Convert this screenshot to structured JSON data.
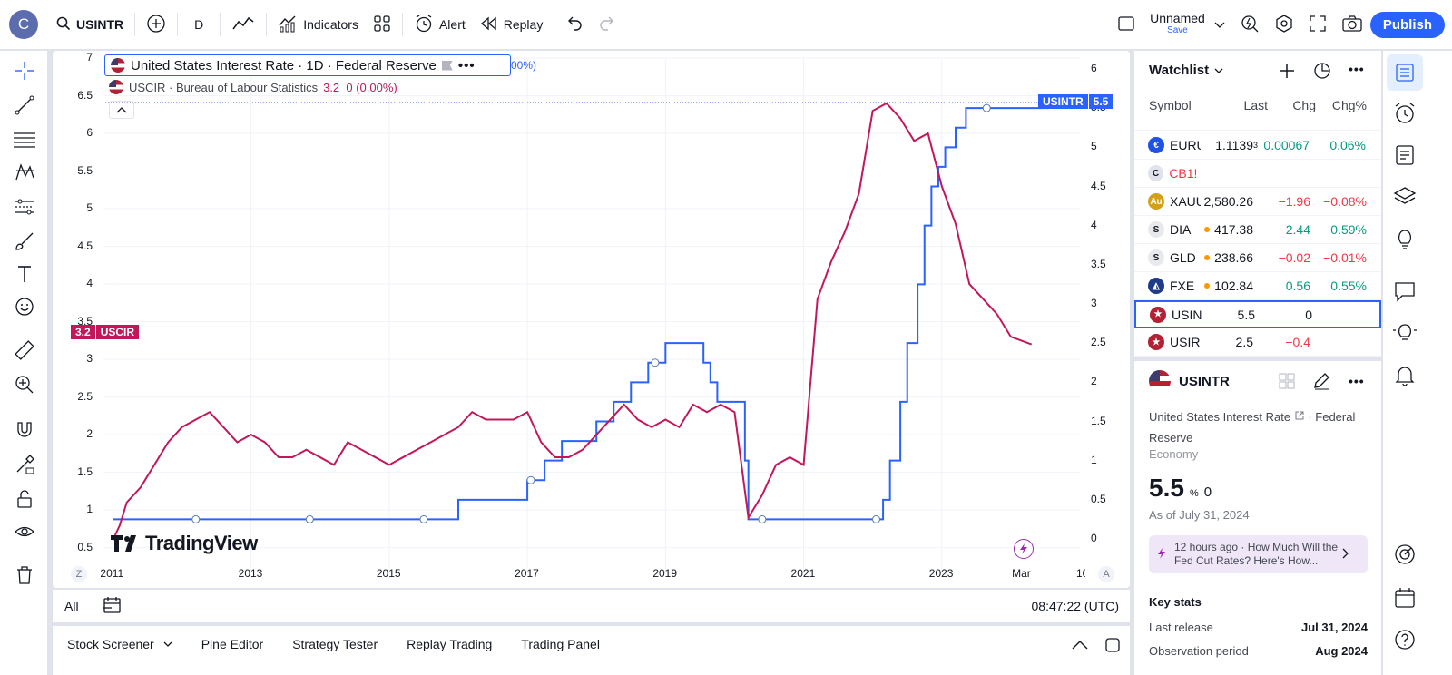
{
  "topbar": {
    "avatar_letter": "C",
    "symbol": "USINTR",
    "interval": "D",
    "indicators": "Indicators",
    "alert": "Alert",
    "replay": "Replay",
    "layout_name": "Unnamed",
    "layout_save": "Save",
    "publish": "Publish"
  },
  "chart": {
    "legend_main": "United States Interest Rate · 1D · Federal Reserve",
    "legend_main_suffix": "00%)",
    "legend_compare": "USCIR · Bureau of Labour Statistics",
    "legend_compare_value": "3.2  0 (0.00%)",
    "left_scale_labels": [
      "7",
      "6.5",
      "6",
      "5.5",
      "5",
      "4.5",
      "4",
      "3.5",
      "3",
      "2.5",
      "2",
      "1.5",
      "1",
      "0.5"
    ],
    "right_scale_labels": [
      "6",
      "5.5",
      "5",
      "4.5",
      "4",
      "3.5",
      "3",
      "2.5",
      "2",
      "1.5",
      "1",
      "0.5",
      "0"
    ],
    "time_labels": [
      "2011",
      "2013",
      "2015",
      "2017",
      "2019",
      "2021",
      "2023",
      "Mar",
      "10"
    ],
    "uscir_badge_value": "3.2",
    "uscir_badge_label": "USCIR",
    "usintr_badge_label": "USINTR",
    "usintr_badge_value": "5.5",
    "watermark": "TradingView",
    "scale_z": "Z",
    "scale_a": "A",
    "colors": {
      "usintr": "#2962ff",
      "uscir": "#c2185b"
    }
  },
  "chart_data": {
    "type": "line",
    "series": [
      {
        "name": "USINTR",
        "scale": "right",
        "points": [
          [
            2011.0,
            0.25
          ],
          [
            2015.9,
            0.25
          ],
          [
            2016.0,
            0.5
          ],
          [
            2016.95,
            0.5
          ],
          [
            2017.0,
            0.75
          ],
          [
            2017.2,
            0.75
          ],
          [
            2017.25,
            1.0
          ],
          [
            2017.45,
            1.0
          ],
          [
            2017.5,
            1.25
          ],
          [
            2017.9,
            1.25
          ],
          [
            2018.0,
            1.5
          ],
          [
            2018.2,
            1.5
          ],
          [
            2018.25,
            1.75
          ],
          [
            2018.45,
            1.75
          ],
          [
            2018.5,
            2.0
          ],
          [
            2018.7,
            2.0
          ],
          [
            2018.75,
            2.25
          ],
          [
            2018.95,
            2.25
          ],
          [
            2019.0,
            2.5
          ],
          [
            2019.45,
            2.5
          ],
          [
            2019.55,
            2.25
          ],
          [
            2019.65,
            2.0
          ],
          [
            2019.75,
            1.75
          ],
          [
            2020.05,
            1.75
          ],
          [
            2020.15,
            1.0
          ],
          [
            2020.2,
            0.25
          ],
          [
            2021.95,
            0.25
          ],
          [
            2022.15,
            0.5
          ],
          [
            2022.25,
            1.0
          ],
          [
            2022.4,
            1.75
          ],
          [
            2022.5,
            2.5
          ],
          [
            2022.65,
            3.25
          ],
          [
            2022.75,
            4.0
          ],
          [
            2022.85,
            4.5
          ],
          [
            2022.95,
            4.75
          ],
          [
            2023.05,
            5.0
          ],
          [
            2023.2,
            5.25
          ],
          [
            2023.35,
            5.5
          ],
          [
            2024.55,
            5.5
          ]
        ]
      },
      {
        "name": "USCIR",
        "scale": "left",
        "points": [
          [
            2011.0,
            0.6
          ],
          [
            2011.1,
            0.8
          ],
          [
            2011.2,
            1.1
          ],
          [
            2011.4,
            1.3
          ],
          [
            2011.6,
            1.6
          ],
          [
            2011.8,
            1.9
          ],
          [
            2012.0,
            2.1
          ],
          [
            2012.2,
            2.2
          ],
          [
            2012.4,
            2.3
          ],
          [
            2012.6,
            2.1
          ],
          [
            2012.8,
            1.9
          ],
          [
            2013.0,
            2.0
          ],
          [
            2013.2,
            1.9
          ],
          [
            2013.4,
            1.7
          ],
          [
            2013.6,
            1.7
          ],
          [
            2013.8,
            1.8
          ],
          [
            2014.0,
            1.7
          ],
          [
            2014.2,
            1.6
          ],
          [
            2014.4,
            1.9
          ],
          [
            2014.6,
            1.8
          ],
          [
            2014.8,
            1.7
          ],
          [
            2015.0,
            1.6
          ],
          [
            2015.2,
            1.7
          ],
          [
            2015.4,
            1.8
          ],
          [
            2015.6,
            1.9
          ],
          [
            2015.8,
            2.0
          ],
          [
            2016.0,
            2.1
          ],
          [
            2016.2,
            2.3
          ],
          [
            2016.4,
            2.2
          ],
          [
            2016.6,
            2.2
          ],
          [
            2016.8,
            2.2
          ],
          [
            2017.0,
            2.3
          ],
          [
            2017.2,
            1.9
          ],
          [
            2017.4,
            1.7
          ],
          [
            2017.6,
            1.7
          ],
          [
            2017.8,
            1.8
          ],
          [
            2018.0,
            2.0
          ],
          [
            2018.2,
            2.2
          ],
          [
            2018.4,
            2.4
          ],
          [
            2018.6,
            2.2
          ],
          [
            2018.8,
            2.1
          ],
          [
            2019.0,
            2.2
          ],
          [
            2019.2,
            2.1
          ],
          [
            2019.4,
            2.4
          ],
          [
            2019.6,
            2.3
          ],
          [
            2019.8,
            2.4
          ],
          [
            2020.0,
            2.3
          ],
          [
            2020.2,
            0.9
          ],
          [
            2020.4,
            1.2
          ],
          [
            2020.6,
            1.6
          ],
          [
            2020.8,
            1.7
          ],
          [
            2021.0,
            1.6
          ],
          [
            2021.2,
            3.8
          ],
          [
            2021.4,
            4.3
          ],
          [
            2021.6,
            4.7
          ],
          [
            2021.8,
            5.2
          ],
          [
            2022.0,
            6.3
          ],
          [
            2022.2,
            6.4
          ],
          [
            2022.4,
            6.2
          ],
          [
            2022.6,
            5.9
          ],
          [
            2022.8,
            6.0
          ],
          [
            2023.0,
            5.3
          ],
          [
            2023.2,
            4.8
          ],
          [
            2023.4,
            4.0
          ],
          [
            2023.6,
            3.8
          ],
          [
            2023.8,
            3.6
          ],
          [
            2024.0,
            3.3
          ],
          [
            2024.3,
            3.2
          ]
        ]
      }
    ],
    "left_ylim": [
      0.4,
      7.0
    ],
    "right_ylim": [
      0,
      6.0
    ],
    "xlim": [
      2010.85,
      2025.0
    ]
  },
  "timeline": {
    "range_all": "All",
    "clock": "08:47:22 (UTC)"
  },
  "bottom_tabs": [
    "Stock Screener",
    "Pine Editor",
    "Strategy Tester",
    "Replay Trading",
    "Trading Panel"
  ],
  "watchlist": {
    "title": "Watchlist",
    "columns": {
      "symbol": "Symbol",
      "last": "Last",
      "chg": "Chg",
      "chgp": "Chg%"
    },
    "rows": [
      {
        "symbol": "EURU",
        "last": "1.1139",
        "last_sup": "3",
        "chg": "0.00067",
        "chgp": "0.06%",
        "dir": "pos",
        "logo_color": "#1e53e5",
        "logo": "€"
      },
      {
        "symbol": "CB1!",
        "last": "",
        "chg": "",
        "chgp": "",
        "dir": "neg",
        "logo_color": "#e0e3eb",
        "logo": "C"
      },
      {
        "symbol": "XAUU",
        "last": "2,580.26",
        "chg": "−1.96",
        "chgp": "−0.08%",
        "dir": "neg",
        "logo_color": "#d4a017",
        "logo": "Au"
      },
      {
        "symbol": "DIA",
        "last": "417.38",
        "chg": "2.44",
        "chgp": "0.59%",
        "dir": "pos",
        "logo_color": "#e8e9ed",
        "logo": "S",
        "dot": true
      },
      {
        "symbol": "GLD",
        "last": "238.66",
        "chg": "−0.02",
        "chgp": "−0.01%",
        "dir": "neg",
        "logo_color": "#e8e9ed",
        "logo": "S",
        "dot": true
      },
      {
        "symbol": "FXE",
        "last": "102.84",
        "chg": "0.56",
        "chgp": "0.55%",
        "dir": "pos",
        "logo_color": "#1e3a8a",
        "logo": "◭",
        "dot": true
      },
      {
        "symbol": "USIN",
        "last": "5.5",
        "chg": "0",
        "chgp": "",
        "dir": "zero",
        "logo_color": "#b22234",
        "logo": "★",
        "selected": true
      },
      {
        "symbol": "USIR",
        "last": "2.5",
        "chg": "−0.4",
        "chgp": "",
        "dir": "neg",
        "logo_color": "#b22234",
        "logo": "★"
      }
    ]
  },
  "details": {
    "symbol": "USINTR",
    "name": "United States Interest Rate",
    "name_suffix": "· Federal",
    "name_line2": "Reserve",
    "category": "Economy",
    "value": "5.5",
    "value_unit": "%",
    "value_change": "0",
    "as_of": "As of July 31, 2024",
    "news_time": "12 hours ago",
    "news_title": "· How Much Will the Fed Cut Rates? Here's How...",
    "key_stats_title": "Key stats",
    "stats": [
      {
        "label": "Last release",
        "value": "Jul 31, 2024"
      },
      {
        "label": "Observation period",
        "value": "Aug 2024"
      }
    ]
  }
}
